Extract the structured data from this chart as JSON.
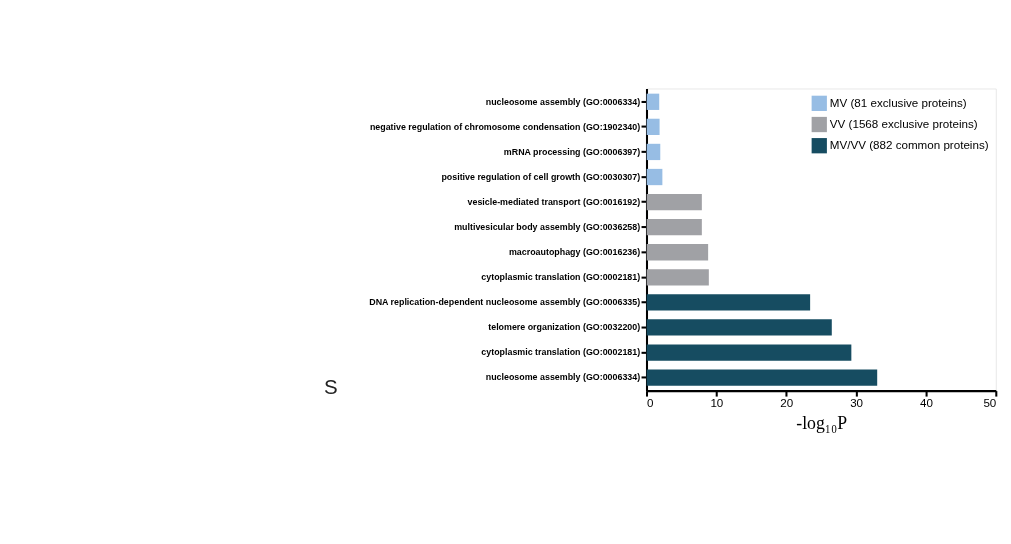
{
  "chart_data": {
    "type": "bar",
    "orientation": "horizontal",
    "xlabel": "-log₁₀P",
    "categories": [
      "nucleosome assembly (GO:0006334)",
      "negative regulation of chromosome condensation (GO:1902340)",
      "mRNA processing (GO:0006397)",
      "positive regulation of cell growth (GO:0030307)",
      "vesicle-mediated transport (GO:0016192)",
      "multivesicular body assembly (GO:0036258)",
      "macroautophagy (GO:0016236)",
      "cytoplasmic translation (GO:0002181)",
      "DNA replication-dependent nucleosome assembly (GO:0006335)",
      "telomere organization (GO:0032200)",
      "cytoplasmic translation (GO:0002181)",
      "nucleosome assembly (GO:0006334)"
    ],
    "series": [
      {
        "name": "MV (81 exclusive  proteins)",
        "color": "#97bde4",
        "values": [
          1.8,
          1.85,
          1.95,
          2.25,
          null,
          null,
          null,
          null,
          null,
          null,
          null,
          null
        ]
      },
      {
        "name": "VV (1568 exclusive proteins)",
        "color": "#a0a1a5",
        "values": [
          null,
          null,
          null,
          null,
          7.9,
          7.9,
          8.8,
          8.9,
          null,
          null,
          null,
          null
        ]
      },
      {
        "name": "MV/VV (882 common proteins)",
        "color": "#164c61",
        "values": [
          null,
          null,
          null,
          null,
          null,
          null,
          null,
          null,
          23.4,
          26.5,
          29.3,
          33.0
        ]
      }
    ],
    "xlim": [
      0,
      50
    ],
    "xticks": [
      0,
      10,
      20,
      30,
      40,
      50
    ],
    "grid": false,
    "legend": "top right",
    "annotations": [
      "S"
    ]
  }
}
